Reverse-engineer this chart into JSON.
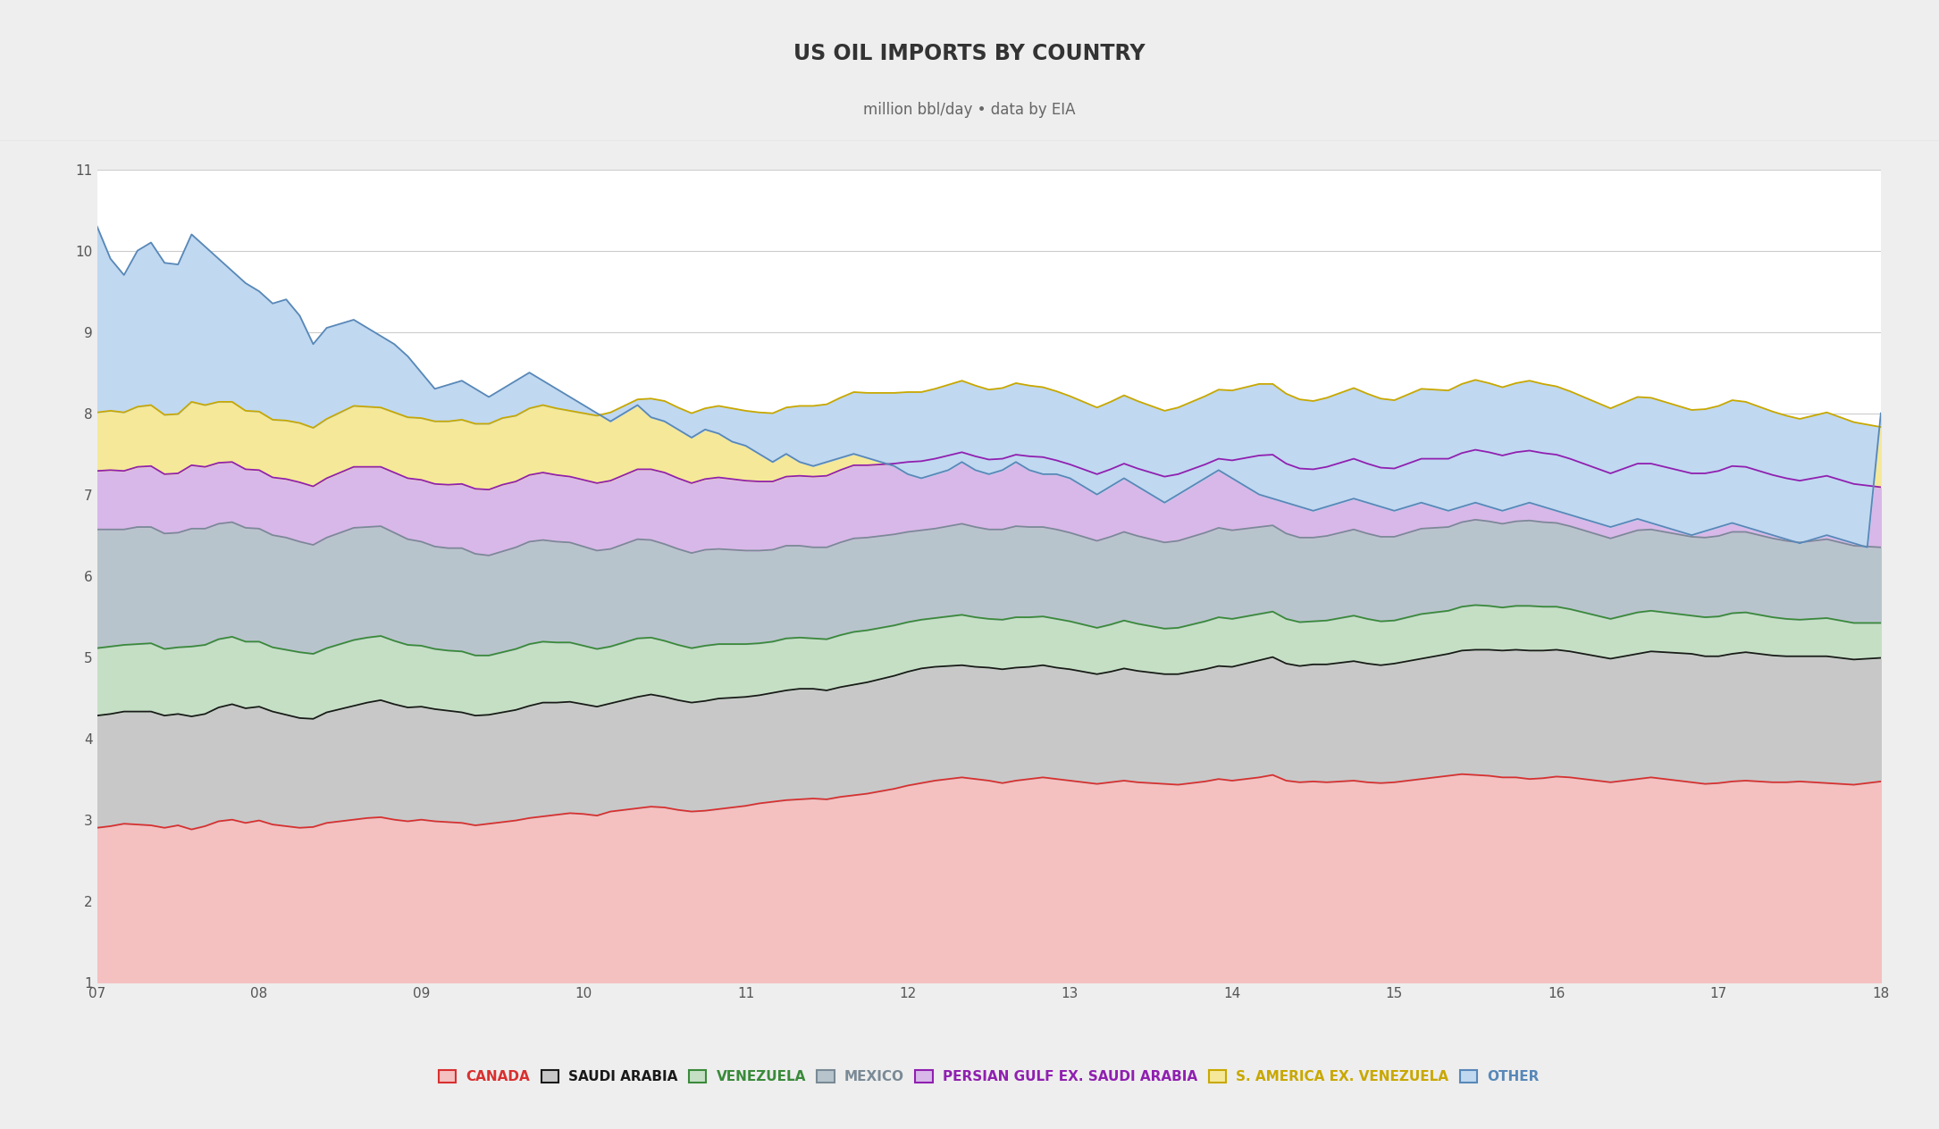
{
  "title": "US OIL IMPORTS BY COUNTRY",
  "subtitle": "million bbl/day • data by EIA",
  "background_color": "#eeeeee",
  "plot_background": "#ffffff",
  "title_bg": "#e8e8e8",
  "ylim": [
    1,
    11
  ],
  "yticks": [
    1,
    2,
    3,
    4,
    5,
    6,
    7,
    8,
    9,
    10,
    11
  ],
  "xlabel_ticks": [
    "07",
    "08",
    "09",
    "10",
    "11",
    "12",
    "13",
    "14",
    "15",
    "16",
    "17",
    "18"
  ],
  "series_labels": [
    "CANADA",
    "SAUDI ARABIA",
    "VENEZUELA",
    "MEXICO",
    "PERSIAN GULF EX. SAUDI ARABIA",
    "S. AMERICA EX. VENEZUELA",
    "OTHER"
  ],
  "series_colors_fill": [
    "#f5c0c0",
    "#c8c8c8",
    "#c5dfc5",
    "#b8c4cc",
    "#d8b8e8",
    "#f5e898",
    "#c0d8f0"
  ],
  "series_colors_line": [
    "#d93030",
    "#1a1a1a",
    "#3a8a3a",
    "#7a8a96",
    "#9020b0",
    "#c8a800",
    "#5888b8"
  ],
  "legend_text_colors": [
    "#d93030",
    "#1a1a1a",
    "#3a8a3a",
    "#7a8a96",
    "#9020b0",
    "#c8a800",
    "#5888b8"
  ],
  "canada": [
    1.9,
    1.92,
    1.95,
    1.94,
    1.93,
    1.9,
    1.93,
    1.88,
    1.92,
    1.98,
    2.0,
    1.96,
    1.99,
    1.94,
    1.92,
    1.9,
    1.91,
    1.96,
    1.98,
    2.0,
    2.02,
    2.03,
    2.0,
    1.98,
    2.0,
    1.98,
    1.97,
    1.96,
    1.93,
    1.95,
    1.97,
    1.99,
    2.02,
    2.04,
    2.06,
    2.08,
    2.07,
    2.05,
    2.1,
    2.12,
    2.14,
    2.16,
    2.15,
    2.12,
    2.1,
    2.11,
    2.13,
    2.15,
    2.17,
    2.2,
    2.22,
    2.24,
    2.25,
    2.26,
    2.25,
    2.28,
    2.3,
    2.32,
    2.35,
    2.38,
    2.42,
    2.45,
    2.48,
    2.5,
    2.52,
    2.5,
    2.48,
    2.45,
    2.48,
    2.5,
    2.52,
    2.5,
    2.48,
    2.46,
    2.44,
    2.46,
    2.48,
    2.46,
    2.45,
    2.44,
    2.43,
    2.45,
    2.47,
    2.5,
    2.48,
    2.5,
    2.52,
    2.55,
    2.48,
    2.46,
    2.47,
    2.46,
    2.47,
    2.48,
    2.46,
    2.45,
    2.46,
    2.48,
    2.5,
    2.52,
    2.54,
    2.56,
    2.55,
    2.54,
    2.52,
    2.52,
    2.5,
    2.51,
    2.53,
    2.52,
    2.5,
    2.48,
    2.46,
    2.48,
    2.5,
    2.52,
    2.5,
    2.48,
    2.46,
    2.44,
    2.45,
    2.47,
    2.48,
    2.47,
    2.46,
    2.46,
    2.47,
    2.46,
    2.45,
    2.44,
    2.43,
    2.45,
    2.47
  ],
  "saudi_arabia": [
    1.38,
    1.38,
    1.38,
    1.39,
    1.4,
    1.38,
    1.37,
    1.39,
    1.38,
    1.4,
    1.42,
    1.41,
    1.4,
    1.39,
    1.37,
    1.35,
    1.33,
    1.36,
    1.38,
    1.4,
    1.42,
    1.44,
    1.42,
    1.4,
    1.39,
    1.38,
    1.37,
    1.36,
    1.35,
    1.34,
    1.35,
    1.36,
    1.38,
    1.4,
    1.38,
    1.37,
    1.35,
    1.34,
    1.33,
    1.35,
    1.37,
    1.38,
    1.36,
    1.35,
    1.34,
    1.35,
    1.36,
    1.35,
    1.34,
    1.33,
    1.34,
    1.35,
    1.36,
    1.35,
    1.34,
    1.35,
    1.36,
    1.37,
    1.38,
    1.39,
    1.4,
    1.41,
    1.4,
    1.39,
    1.38,
    1.38,
    1.39,
    1.4,
    1.39,
    1.38,
    1.38,
    1.37,
    1.37,
    1.36,
    1.35,
    1.36,
    1.38,
    1.37,
    1.36,
    1.35,
    1.36,
    1.37,
    1.38,
    1.39,
    1.4,
    1.42,
    1.44,
    1.45,
    1.44,
    1.43,
    1.44,
    1.45,
    1.46,
    1.47,
    1.46,
    1.45,
    1.46,
    1.47,
    1.48,
    1.49,
    1.5,
    1.52,
    1.54,
    1.55,
    1.56,
    1.57,
    1.58,
    1.57,
    1.56,
    1.55,
    1.54,
    1.53,
    1.52,
    1.53,
    1.54,
    1.55,
    1.56,
    1.57,
    1.58,
    1.57,
    1.56,
    1.57,
    1.58,
    1.57,
    1.56,
    1.55,
    1.54,
    1.55,
    1.56,
    1.55,
    1.54,
    1.53,
    1.52
  ],
  "venezuela": [
    0.83,
    0.83,
    0.82,
    0.83,
    0.84,
    0.82,
    0.82,
    0.86,
    0.85,
    0.84,
    0.83,
    0.82,
    0.8,
    0.79,
    0.8,
    0.81,
    0.8,
    0.79,
    0.8,
    0.81,
    0.8,
    0.79,
    0.78,
    0.77,
    0.75,
    0.74,
    0.74,
    0.75,
    0.74,
    0.73,
    0.74,
    0.75,
    0.76,
    0.75,
    0.74,
    0.73,
    0.72,
    0.71,
    0.7,
    0.71,
    0.72,
    0.7,
    0.69,
    0.68,
    0.67,
    0.68,
    0.67,
    0.66,
    0.65,
    0.64,
    0.63,
    0.64,
    0.63,
    0.62,
    0.63,
    0.64,
    0.65,
    0.64,
    0.63,
    0.62,
    0.61,
    0.6,
    0.6,
    0.61,
    0.62,
    0.61,
    0.6,
    0.61,
    0.62,
    0.61,
    0.6,
    0.6,
    0.59,
    0.58,
    0.57,
    0.58,
    0.59,
    0.58,
    0.57,
    0.56,
    0.57,
    0.58,
    0.59,
    0.6,
    0.59,
    0.58,
    0.57,
    0.56,
    0.55,
    0.54,
    0.53,
    0.54,
    0.55,
    0.56,
    0.55,
    0.54,
    0.53,
    0.54,
    0.55,
    0.54,
    0.53,
    0.54,
    0.55,
    0.54,
    0.53,
    0.54,
    0.55,
    0.54,
    0.53,
    0.52,
    0.51,
    0.5,
    0.49,
    0.5,
    0.51,
    0.5,
    0.49,
    0.48,
    0.47,
    0.48,
    0.49,
    0.5,
    0.49,
    0.48,
    0.47,
    0.46,
    0.45,
    0.46,
    0.47,
    0.46,
    0.45,
    0.44,
    0.43
  ],
  "mexico": [
    1.46,
    1.44,
    1.42,
    1.44,
    1.43,
    1.42,
    1.41,
    1.45,
    1.43,
    1.42,
    1.41,
    1.4,
    1.39,
    1.38,
    1.38,
    1.36,
    1.34,
    1.36,
    1.37,
    1.38,
    1.36,
    1.35,
    1.33,
    1.3,
    1.28,
    1.26,
    1.26,
    1.27,
    1.25,
    1.23,
    1.24,
    1.25,
    1.26,
    1.25,
    1.24,
    1.23,
    1.22,
    1.21,
    1.2,
    1.21,
    1.22,
    1.2,
    1.19,
    1.18,
    1.17,
    1.18,
    1.17,
    1.16,
    1.15,
    1.14,
    1.13,
    1.14,
    1.13,
    1.12,
    1.13,
    1.14,
    1.15,
    1.14,
    1.13,
    1.12,
    1.11,
    1.1,
    1.1,
    1.11,
    1.12,
    1.11,
    1.1,
    1.11,
    1.12,
    1.11,
    1.1,
    1.1,
    1.09,
    1.08,
    1.07,
    1.08,
    1.09,
    1.08,
    1.07,
    1.06,
    1.07,
    1.08,
    1.09,
    1.1,
    1.09,
    1.08,
    1.07,
    1.06,
    1.05,
    1.04,
    1.03,
    1.04,
    1.05,
    1.06,
    1.05,
    1.04,
    1.03,
    1.04,
    1.05,
    1.04,
    1.03,
    1.04,
    1.05,
    1.04,
    1.03,
    1.04,
    1.05,
    1.04,
    1.03,
    1.02,
    1.01,
    1.0,
    0.99,
    1.0,
    1.01,
    1.0,
    0.99,
    0.98,
    0.97,
    0.98,
    0.99,
    1.0,
    0.99,
    0.98,
    0.97,
    0.96,
    0.95,
    0.96,
    0.97,
    0.96,
    0.95,
    0.94,
    0.93
  ],
  "persian_gulf": [
    0.72,
    0.73,
    0.72,
    0.74,
    0.75,
    0.73,
    0.73,
    0.78,
    0.76,
    0.75,
    0.74,
    0.72,
    0.72,
    0.71,
    0.72,
    0.73,
    0.72,
    0.73,
    0.74,
    0.75,
    0.74,
    0.73,
    0.74,
    0.75,
    0.76,
    0.77,
    0.78,
    0.79,
    0.8,
    0.81,
    0.82,
    0.81,
    0.82,
    0.83,
    0.82,
    0.81,
    0.82,
    0.83,
    0.84,
    0.85,
    0.86,
    0.87,
    0.88,
    0.87,
    0.86,
    0.87,
    0.88,
    0.87,
    0.86,
    0.85,
    0.84,
    0.85,
    0.86,
    0.87,
    0.88,
    0.89,
    0.9,
    0.89,
    0.88,
    0.87,
    0.86,
    0.85,
    0.86,
    0.87,
    0.88,
    0.87,
    0.86,
    0.87,
    0.88,
    0.87,
    0.86,
    0.85,
    0.84,
    0.83,
    0.82,
    0.83,
    0.84,
    0.83,
    0.82,
    0.81,
    0.82,
    0.83,
    0.84,
    0.85,
    0.86,
    0.87,
    0.88,
    0.87,
    0.86,
    0.85,
    0.84,
    0.85,
    0.86,
    0.87,
    0.86,
    0.85,
    0.84,
    0.85,
    0.86,
    0.85,
    0.84,
    0.85,
    0.86,
    0.85,
    0.84,
    0.85,
    0.86,
    0.85,
    0.84,
    0.83,
    0.82,
    0.81,
    0.8,
    0.81,
    0.82,
    0.81,
    0.8,
    0.79,
    0.78,
    0.79,
    0.8,
    0.81,
    0.8,
    0.79,
    0.78,
    0.77,
    0.76,
    0.77,
    0.78,
    0.77,
    0.76,
    0.75,
    0.74
  ],
  "s_america": [
    0.72,
    0.73,
    0.72,
    0.74,
    0.75,
    0.73,
    0.73,
    0.78,
    0.76,
    0.75,
    0.74,
    0.72,
    0.72,
    0.71,
    0.72,
    0.73,
    0.72,
    0.73,
    0.74,
    0.75,
    0.74,
    0.73,
    0.74,
    0.75,
    0.76,
    0.77,
    0.78,
    0.79,
    0.8,
    0.81,
    0.82,
    0.81,
    0.82,
    0.83,
    0.82,
    0.81,
    0.82,
    0.83,
    0.84,
    0.85,
    0.86,
    0.87,
    0.88,
    0.87,
    0.86,
    0.87,
    0.88,
    0.87,
    0.86,
    0.85,
    0.84,
    0.85,
    0.86,
    0.87,
    0.88,
    0.89,
    0.9,
    0.89,
    0.88,
    0.87,
    0.86,
    0.85,
    0.86,
    0.87,
    0.88,
    0.87,
    0.86,
    0.87,
    0.88,
    0.87,
    0.86,
    0.85,
    0.84,
    0.83,
    0.82,
    0.83,
    0.84,
    0.83,
    0.82,
    0.81,
    0.82,
    0.83,
    0.84,
    0.85,
    0.86,
    0.87,
    0.88,
    0.87,
    0.86,
    0.85,
    0.84,
    0.85,
    0.86,
    0.87,
    0.86,
    0.85,
    0.84,
    0.85,
    0.86,
    0.85,
    0.84,
    0.85,
    0.86,
    0.85,
    0.84,
    0.85,
    0.86,
    0.85,
    0.84,
    0.83,
    0.82,
    0.81,
    0.8,
    0.81,
    0.82,
    0.81,
    0.8,
    0.79,
    0.78,
    0.79,
    0.8,
    0.81,
    0.8,
    0.79,
    0.78,
    0.77,
    0.76,
    0.77,
    0.78,
    0.77,
    0.76,
    0.75,
    0.74
  ],
  "total": [
    10.3,
    9.9,
    9.7,
    10.0,
    10.1,
    9.85,
    9.83,
    10.2,
    10.05,
    9.9,
    9.75,
    9.6,
    9.5,
    9.35,
    9.4,
    9.2,
    8.85,
    9.05,
    9.1,
    9.15,
    9.05,
    8.95,
    8.85,
    8.7,
    8.5,
    8.3,
    8.35,
    8.4,
    8.3,
    8.2,
    8.3,
    8.4,
    8.5,
    8.4,
    8.3,
    8.2,
    8.1,
    8.0,
    7.9,
    8.0,
    8.1,
    7.95,
    7.9,
    7.8,
    7.7,
    7.8,
    7.75,
    7.65,
    7.6,
    7.5,
    7.4,
    7.5,
    7.4,
    7.35,
    7.4,
    7.45,
    7.5,
    7.45,
    7.4,
    7.35,
    7.25,
    7.2,
    7.25,
    7.3,
    7.4,
    7.3,
    7.25,
    7.3,
    7.4,
    7.3,
    7.25,
    7.25,
    7.2,
    7.1,
    7.0,
    7.1,
    7.2,
    7.1,
    7.0,
    6.9,
    7.0,
    7.1,
    7.2,
    7.3,
    7.2,
    7.1,
    7.0,
    6.95,
    6.9,
    6.85,
    6.8,
    6.85,
    6.9,
    6.95,
    6.9,
    6.85,
    6.8,
    6.85,
    6.9,
    6.85,
    6.8,
    6.85,
    6.9,
    6.85,
    6.8,
    6.85,
    6.9,
    6.85,
    6.8,
    6.75,
    6.7,
    6.65,
    6.6,
    6.65,
    6.7,
    6.65,
    6.6,
    6.55,
    6.5,
    6.55,
    6.6,
    6.65,
    6.6,
    6.55,
    6.5,
    6.45,
    6.4,
    6.45,
    6.5,
    6.45,
    6.4,
    6.35,
    8.0
  ]
}
